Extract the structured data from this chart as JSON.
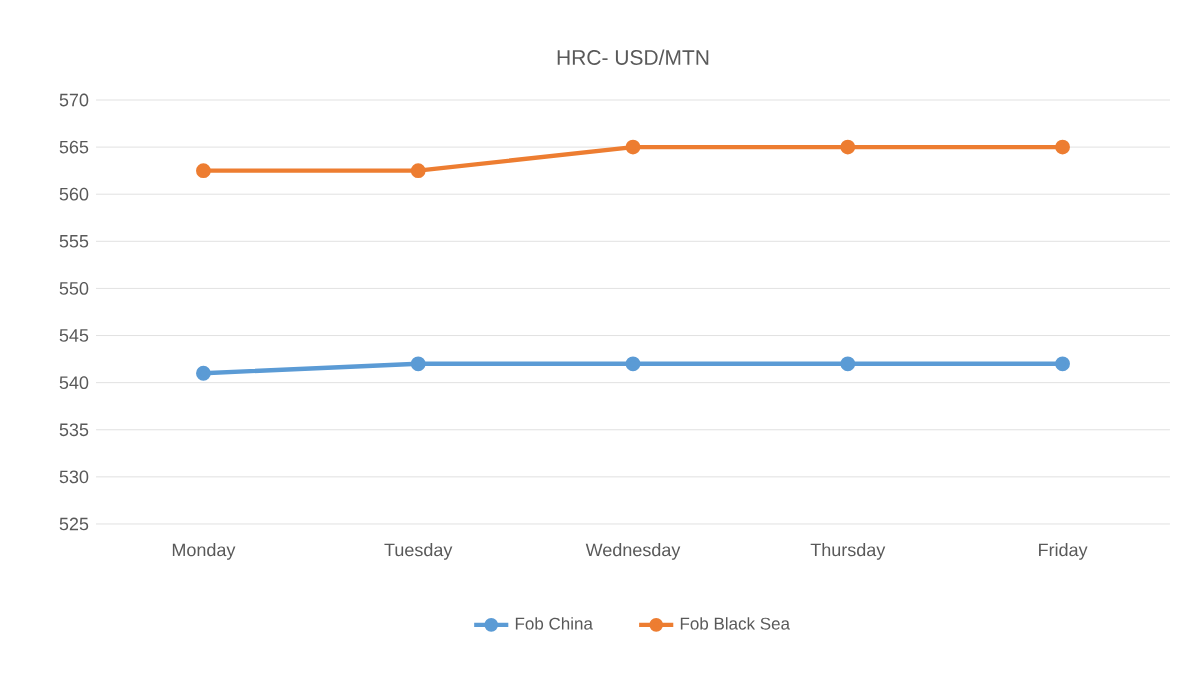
{
  "chart_data": {
    "type": "line",
    "title": "HRC- USD/MTN",
    "categories": [
      "Monday",
      "Tuesday",
      "Wednesday",
      "Thursday",
      "Friday"
    ],
    "series": [
      {
        "name": "Fob China",
        "color": "#5b9bd5",
        "values": [
          541,
          542,
          542,
          542,
          542
        ]
      },
      {
        "name": "Fob Black Sea",
        "color": "#ed7d31",
        "values": [
          562.5,
          562.5,
          565,
          565,
          565
        ]
      }
    ],
    "ylim": [
      525,
      570
    ],
    "yticks": [
      525,
      530,
      535,
      540,
      545,
      550,
      555,
      560,
      565,
      570
    ],
    "grid": "y",
    "legend": "bottom",
    "marker": "circle",
    "line_style": "solid"
  }
}
